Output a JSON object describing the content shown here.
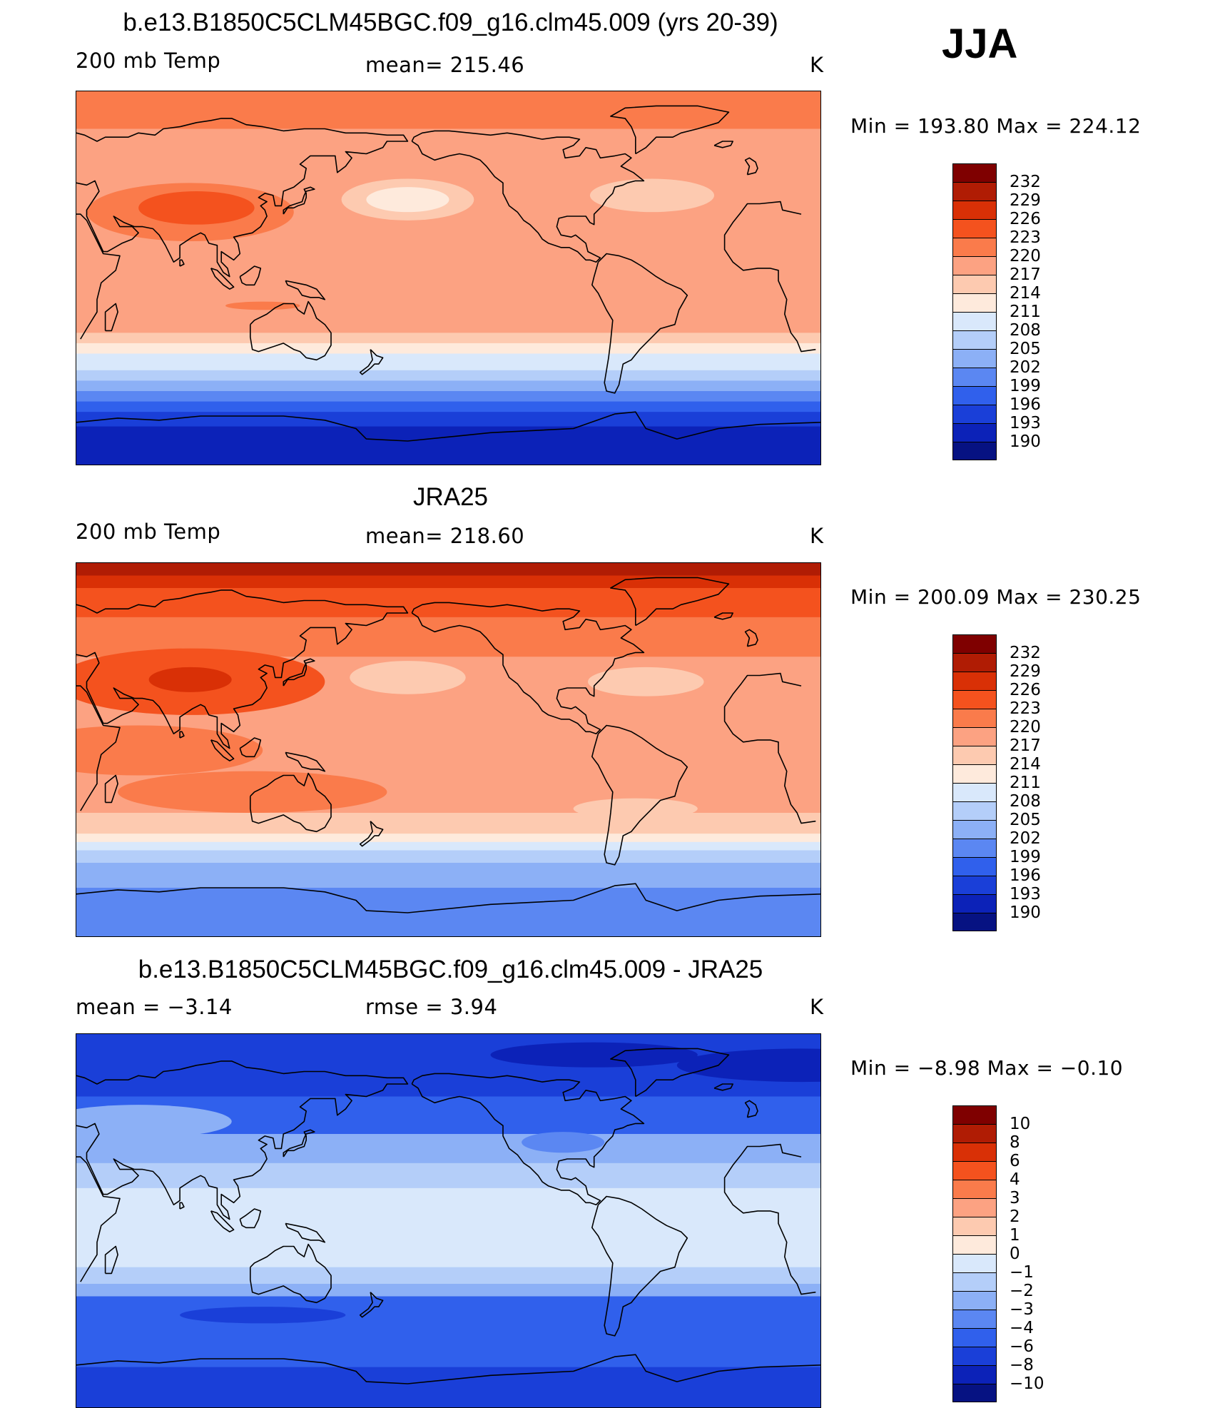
{
  "season": "JJA",
  "panels": [
    {
      "id": "model",
      "title": "b.e13.B1850C5CLM45BGC.f09_g16.clm45.009 (yrs 20-39)",
      "left_label": "200 mb Temp",
      "center_label": "mean= 215.46",
      "units": "K",
      "minmax": "Min = 193.80 Max = 224.12",
      "colorbar_levels": [
        "232",
        "229",
        "226",
        "223",
        "220",
        "217",
        "214",
        "211",
        "208",
        "205",
        "202",
        "199",
        "196",
        "193",
        "190"
      ],
      "colorbar_colors": [
        "#7f0000",
        "#b01c04",
        "#d93006",
        "#f4521e",
        "#fa7b4b",
        "#fca282",
        "#fdcab0",
        "#feeadc",
        "#d9e8fb",
        "#b4cef9",
        "#8cb0f6",
        "#5b87f2",
        "#3060ec",
        "#1a3fd8",
        "#0c22b8",
        "#061282"
      ],
      "bands": [
        {
          "lat": 90,
          "color": "#fa7b4b"
        },
        {
          "lat": 72,
          "color": "#fca282"
        },
        {
          "lat": 42,
          "color": "#fca282"
        },
        {
          "lat": 8,
          "color": "#fca282"
        },
        {
          "lat": -18,
          "color": "#fca282"
        },
        {
          "lat": -26,
          "color": "#fdcab0"
        },
        {
          "lat": -31,
          "color": "#feeadc"
        },
        {
          "lat": -36,
          "color": "#d9e8fb"
        },
        {
          "lat": -44,
          "color": "#b4cef9"
        },
        {
          "lat": -49,
          "color": "#8cb0f6"
        },
        {
          "lat": -54,
          "color": "#5b87f2"
        },
        {
          "lat": -59,
          "color": "#3060ec"
        },
        {
          "lat": -64,
          "color": "#1a3fd8"
        },
        {
          "lat": -71,
          "color": "#0c22b8"
        }
      ],
      "blobs": [
        {
          "lon": 85,
          "lat": 32,
          "rx": 50,
          "ry": 14,
          "color": "#fa7b4b"
        },
        {
          "lon": 88,
          "lat": 34,
          "rx": 28,
          "ry": 8,
          "color": "#f4521e"
        },
        {
          "lon": 190,
          "lat": 38,
          "rx": 32,
          "ry": 10,
          "color": "#fdcab0"
        },
        {
          "lon": 190,
          "lat": 38,
          "rx": 20,
          "ry": 6,
          "color": "#feeadc"
        },
        {
          "lon": 308,
          "lat": 40,
          "rx": 30,
          "ry": 8,
          "color": "#fdcab0"
        },
        {
          "lon": 120,
          "lat": -13,
          "rx": 18,
          "ry": 2,
          "color": "#fa7b4b"
        }
      ]
    },
    {
      "id": "obs",
      "title": "JRA25",
      "left_label": "200 mb Temp",
      "center_label": "mean= 218.60",
      "units": "K",
      "minmax": "Min = 200.09 Max = 230.25",
      "colorbar_levels": [
        "232",
        "229",
        "226",
        "223",
        "220",
        "217",
        "214",
        "211",
        "208",
        "205",
        "202",
        "199",
        "196",
        "193",
        "190"
      ],
      "colorbar_colors": [
        "#7f0000",
        "#b01c04",
        "#d93006",
        "#f4521e",
        "#fa7b4b",
        "#fca282",
        "#fdcab0",
        "#feeadc",
        "#d9e8fb",
        "#b4cef9",
        "#8cb0f6",
        "#5b87f2",
        "#3060ec",
        "#1a3fd8",
        "#0c22b8",
        "#061282"
      ],
      "bands": [
        {
          "lat": 90,
          "color": "#b01c04"
        },
        {
          "lat": 84,
          "color": "#d93006"
        },
        {
          "lat": 78,
          "color": "#f4521e"
        },
        {
          "lat": 64,
          "color": "#fa7b4b"
        },
        {
          "lat": 45,
          "color": "#fca282"
        },
        {
          "lat": -20,
          "color": "#fca282"
        },
        {
          "lat": -30,
          "color": "#fdcab0"
        },
        {
          "lat": -40,
          "color": "#feeadc"
        },
        {
          "lat": -44,
          "color": "#d9e8fb"
        },
        {
          "lat": -48,
          "color": "#b4cef9"
        },
        {
          "lat": -54,
          "color": "#8cb0f6"
        },
        {
          "lat": -66,
          "color": "#5b87f2"
        }
      ],
      "blobs": [
        {
          "lon": 85,
          "lat": 33,
          "rx": 65,
          "ry": 16,
          "color": "#f4521e"
        },
        {
          "lon": 85,
          "lat": 34,
          "rx": 20,
          "ry": 6,
          "color": "#d93006"
        },
        {
          "lon": 115,
          "lat": -20,
          "rx": 65,
          "ry": 10,
          "color": "#fa7b4b"
        },
        {
          "lon": 60,
          "lat": 0,
          "rx": 60,
          "ry": 12,
          "color": "#fa7b4b"
        },
        {
          "lon": 190,
          "lat": 35,
          "rx": 28,
          "ry": 8,
          "color": "#fdcab0"
        },
        {
          "lon": 305,
          "lat": 33,
          "rx": 28,
          "ry": 7,
          "color": "#fdcab0"
        },
        {
          "lon": 300,
          "lat": -28,
          "rx": 30,
          "ry": 5,
          "color": "#fdcab0"
        }
      ]
    },
    {
      "id": "diff",
      "title": "b.e13.B1850C5CLM45BGC.f09_g16.clm45.009 - JRA25",
      "left_label": "mean =   −3.14",
      "center_label": "rmse =   3.94",
      "units": "K",
      "minmax": "Min =  −8.98 Max =  −0.10",
      "colorbar_levels": [
        "10",
        "8",
        "6",
        "4",
        "3",
        "2",
        "1",
        "0",
        "−1",
        "−2",
        "−3",
        "−4",
        "−6",
        "−8",
        "−10"
      ],
      "colorbar_colors": [
        "#7f0000",
        "#b01c04",
        "#d93006",
        "#f4521e",
        "#fa7b4b",
        "#fca282",
        "#fdcab0",
        "#feeadc",
        "#d9e8fb",
        "#b4cef9",
        "#8cb0f6",
        "#5b87f2",
        "#3060ec",
        "#1a3fd8",
        "#0c22b8",
        "#061282"
      ],
      "bands": [
        {
          "lat": 90,
          "color": "#1a3fd8"
        },
        {
          "lat": 60,
          "color": "#3060ec"
        },
        {
          "lat": 42,
          "color": "#8cb0f6"
        },
        {
          "lat": 28,
          "color": "#b4cef9"
        },
        {
          "lat": 16,
          "color": "#d9e8fb"
        },
        {
          "lat": -22,
          "color": "#b4cef9"
        },
        {
          "lat": -30,
          "color": "#8cb0f6"
        },
        {
          "lat": -36,
          "color": "#3060ec"
        },
        {
          "lat": -70,
          "color": "#1a3fd8"
        }
      ],
      "blobs": [
        {
          "lon": 20,
          "lat": 75,
          "rx": 60,
          "ry": 8,
          "color": "#0c22b8"
        },
        {
          "lon": 280,
          "lat": 80,
          "rx": 50,
          "ry": 6,
          "color": "#0c22b8"
        },
        {
          "lon": 265,
          "lat": 38,
          "rx": 20,
          "ry": 5,
          "color": "#5b87f2"
        },
        {
          "lon": 120,
          "lat": -45,
          "rx": 40,
          "ry": 4,
          "color": "#1a3fd8"
        },
        {
          "lon": 60,
          "lat": 48,
          "rx": 45,
          "ry": 8,
          "color": "#8cb0f6"
        }
      ]
    }
  ]
}
